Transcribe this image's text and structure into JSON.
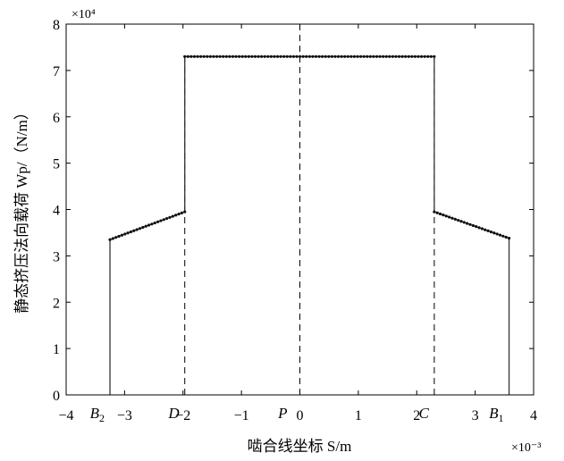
{
  "chart_data": {
    "type": "line",
    "title": "",
    "xlabel": "啮合线坐标 S/m",
    "ylabel": "静态挤压法向载荷 Wp/（N/m）",
    "x_exponent_label": "×10⁻³",
    "y_exponent_label": "×10⁴",
    "xlim": [
      -4,
      4
    ],
    "ylim": [
      0,
      8
    ],
    "x_scale": 0.001,
    "y_scale": 10000,
    "grid": false,
    "legend": "none",
    "x_ticks": [
      -4,
      -3,
      -2,
      -1,
      0,
      1,
      2,
      3,
      4
    ],
    "x_tick_labels": [
      "−4",
      "−3",
      "−2",
      "−1",
      "0",
      "1",
      "2",
      "3",
      "4"
    ],
    "y_ticks": [
      0,
      1,
      2,
      3,
      4,
      5,
      6,
      7,
      8
    ],
    "y_tick_labels": [
      "0",
      "1",
      "2",
      "3",
      "4",
      "5",
      "6",
      "7",
      "8"
    ],
    "series": [
      {
        "points": [
          [
            -3.25,
            0
          ],
          [
            -3.25,
            3.35
          ],
          [
            -1.97,
            3.95
          ],
          [
            -1.97,
            7.3
          ],
          [
            2.3,
            7.3
          ],
          [
            2.3,
            3.95
          ],
          [
            3.58,
            3.38
          ],
          [
            3.58,
            0
          ]
        ],
        "line_color": "#333333",
        "marker_color": "#111111"
      }
    ],
    "dashed_lines": [
      {
        "x": -1.97,
        "y0": 0,
        "y1": 7.3
      },
      {
        "x": 0,
        "y0": 0,
        "y1": 8
      },
      {
        "x": 2.3,
        "y0": 0,
        "y1": 7.3
      }
    ],
    "point_labels": [
      {
        "x": -3.25,
        "label": "B",
        "sub": "2"
      },
      {
        "x": -1.97,
        "label": "D",
        "sub": ""
      },
      {
        "x": 0,
        "label": "P",
        "sub": ""
      },
      {
        "x": 2.3,
        "label": "C",
        "sub": ""
      },
      {
        "x": 3.58,
        "label": "B",
        "sub": "1"
      }
    ]
  }
}
